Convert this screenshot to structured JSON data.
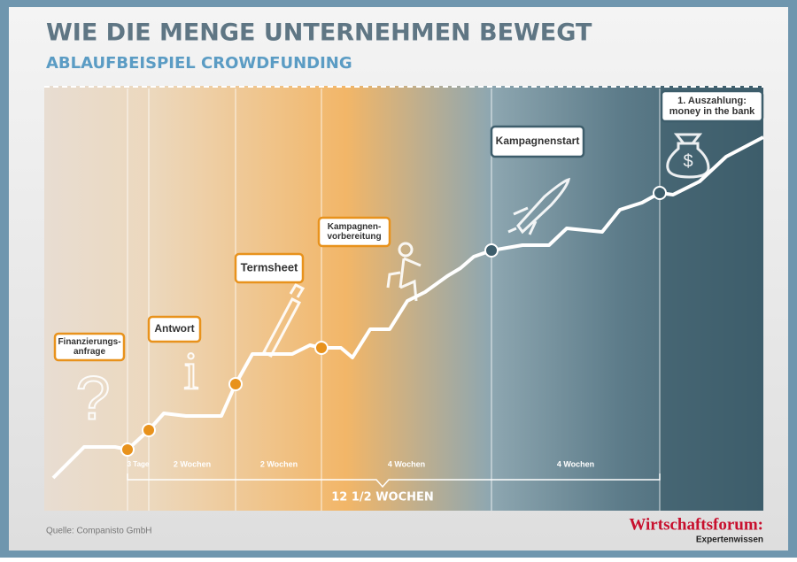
{
  "header": {
    "title": "WIE DIE MENGE UNTERNEHMEN BEWEGT",
    "subtitle": "ABLAUFBEISPIEL CROWDFUNDING"
  },
  "steps": [
    {
      "lines": [
        "Finanzierungs-",
        "anfrage"
      ]
    },
    {
      "lines": [
        "Antwort"
      ]
    },
    {
      "lines": [
        "Termsheet"
      ]
    },
    {
      "lines": [
        "Kampagnen-",
        "vorbereitung"
      ]
    },
    {
      "lines": [
        "Kampagnenstart"
      ]
    },
    {
      "lines": [
        "1. Auszahlung:",
        "money in the bank"
      ]
    }
  ],
  "durations": [
    "3 Tage",
    "2 Wochen",
    "2 Wochen",
    "4 Wochen",
    "4 Wochen"
  ],
  "total": "12 1/2 WOCHEN",
  "footer": {
    "source": "Quelle: Companisto GmbH",
    "brand": "Wirtschaftsforum:",
    "brand_sub": "Expertenwissen"
  }
}
